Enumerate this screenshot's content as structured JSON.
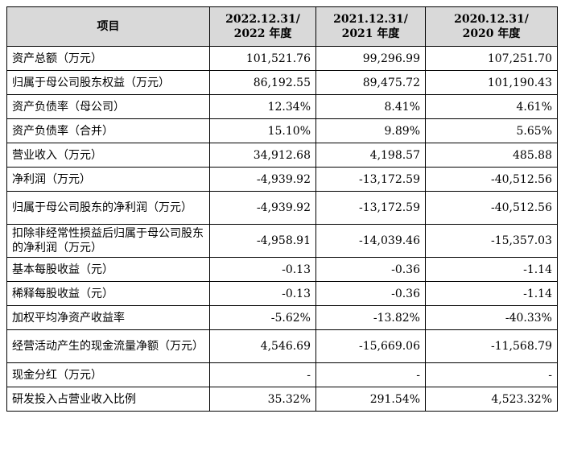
{
  "table": {
    "headers": [
      {
        "line1": "项目",
        "line2": ""
      },
      {
        "line1": "2022.12.31/",
        "line2": "2022 年度"
      },
      {
        "line1": "2021.12.31/",
        "line2": "2021 年度"
      },
      {
        "line1": "2020.12.31/",
        "line2": "2020 年度"
      }
    ],
    "rows": [
      {
        "label": "资产总额（万元）",
        "values": [
          "101,521.76",
          "99,296.99",
          "107,251.70"
        ]
      },
      {
        "label": "归属于母公司股东权益（万元）",
        "values": [
          "86,192.55",
          "89,475.72",
          "101,190.43"
        ]
      },
      {
        "label": "资产负债率（母公司）",
        "values": [
          "12.34%",
          "8.41%",
          "4.61%"
        ]
      },
      {
        "label": "资产负债率（合并）",
        "values": [
          "15.10%",
          "9.89%",
          "5.65%"
        ]
      },
      {
        "label": "营业收入（万元）",
        "values": [
          "34,912.68",
          "4,198.57",
          "485.88"
        ]
      },
      {
        "label": "净利润（万元）",
        "values": [
          "-4,939.92",
          "-13,172.59",
          "-40,512.56"
        ]
      },
      {
        "label": "归属于母公司股东的净利润（万元）",
        "values": [
          "-4,939.92",
          "-13,172.59",
          "-40,512.56"
        ]
      },
      {
        "label": "扣除非经常性损益后归属于母公司股东的净利润（万元）",
        "values": [
          "-4,958.91",
          "-14,039.46",
          "-15,357.03"
        ]
      },
      {
        "label": "基本每股收益（元）",
        "values": [
          "-0.13",
          "-0.36",
          "-1.14"
        ]
      },
      {
        "label": "稀释每股收益（元）",
        "values": [
          "-0.13",
          "-0.36",
          "-1.14"
        ]
      },
      {
        "label": "加权平均净资产收益率",
        "values": [
          "-5.62%",
          "-13.82%",
          "-40.33%"
        ]
      },
      {
        "label": "经营活动产生的现金流量净额（万元）",
        "values": [
          "4,546.69",
          "-15,669.06",
          "-11,568.79"
        ]
      },
      {
        "label": "现金分红（万元）",
        "values": [
          "-",
          "-",
          "-"
        ]
      },
      {
        "label": "研发投入占营业收入比例",
        "values": [
          "35.32%",
          "291.54%",
          "4,523.32%"
        ]
      }
    ]
  }
}
